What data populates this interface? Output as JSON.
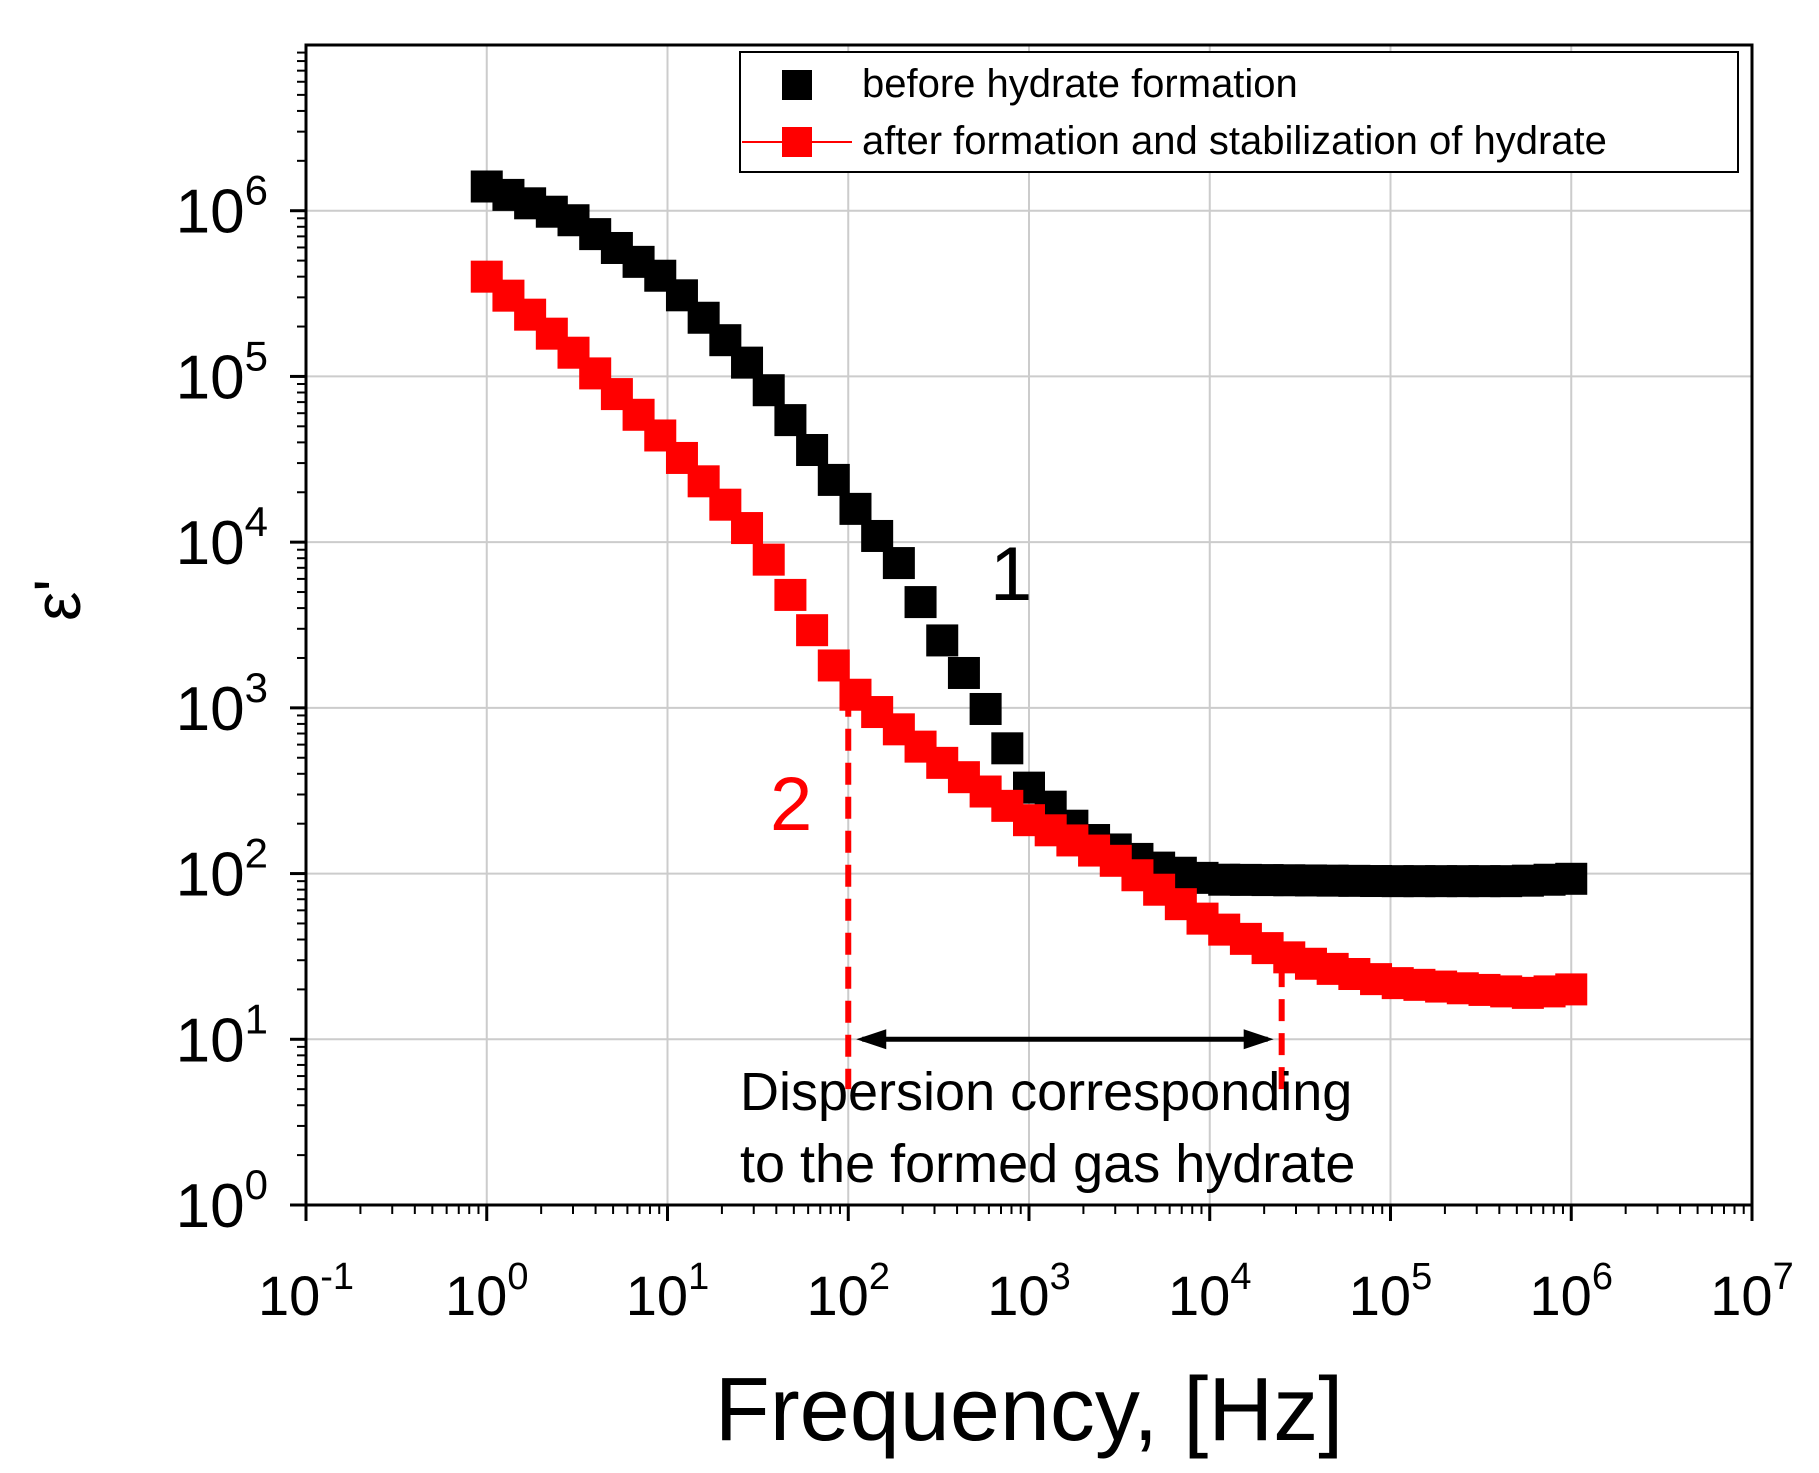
{
  "chart_data": {
    "type": "scatter",
    "xscale": "log",
    "yscale": "log",
    "xlim": [
      0.1,
      10000000
    ],
    "ylim": [
      1,
      10000000
    ],
    "grid": true,
    "xlabel": "Frequency, [Hz]",
    "ylabel": "ε'",
    "x_ticks": [
      {
        "base": "10",
        "exp": "-1"
      },
      {
        "base": "10",
        "exp": "0"
      },
      {
        "base": "10",
        "exp": "1"
      },
      {
        "base": "10",
        "exp": "2"
      },
      {
        "base": "10",
        "exp": "3"
      },
      {
        "base": "10",
        "exp": "4"
      },
      {
        "base": "10",
        "exp": "5"
      },
      {
        "base": "10",
        "exp": "6"
      },
      {
        "base": "10",
        "exp": "7"
      }
    ],
    "y_ticks": [
      {
        "base": "10",
        "exp": "0"
      },
      {
        "base": "10",
        "exp": "1"
      },
      {
        "base": "10",
        "exp": "2"
      },
      {
        "base": "10",
        "exp": "3"
      },
      {
        "base": "10",
        "exp": "4"
      },
      {
        "base": "10",
        "exp": "5"
      },
      {
        "base": "10",
        "exp": "6"
      }
    ],
    "legend_position": "top-right",
    "series": [
      {
        "name": "before hydrate formation",
        "color": "#000000",
        "label": "1",
        "points": [
          [
            1,
            1400000
          ],
          [
            3,
            880000
          ],
          [
            10,
            380000
          ],
          [
            30,
            110000
          ],
          [
            100,
            18000
          ],
          [
            200,
            7000
          ],
          [
            300,
            3000
          ],
          [
            500,
            1300
          ],
          [
            1000,
            330
          ],
          [
            2000,
            170
          ],
          [
            5000,
            110
          ],
          [
            10000,
            92
          ],
          [
            100000,
            90
          ],
          [
            500000,
            90
          ],
          [
            1000000,
            93
          ]
        ]
      },
      {
        "name": "after formation and stabilization of hydrate",
        "color": "#ff0000",
        "label": "2",
        "points": [
          [
            1,
            400000
          ],
          [
            3,
            140000
          ],
          [
            10,
            40000
          ],
          [
            30,
            11000
          ],
          [
            100,
            1300
          ],
          [
            300,
            500
          ],
          [
            1000,
            210
          ],
          [
            3000,
            120
          ],
          [
            10000,
            50
          ],
          [
            30000,
            30
          ],
          [
            100000,
            22
          ],
          [
            300000,
            20
          ],
          [
            600000,
            19
          ],
          [
            1000000,
            20
          ]
        ]
      }
    ],
    "annotations": {
      "dispersion_range": [
        100,
        25000
      ],
      "text_line1": "Dispersion corresponding",
      "text_line2": "to the formed gas hydrate"
    }
  }
}
